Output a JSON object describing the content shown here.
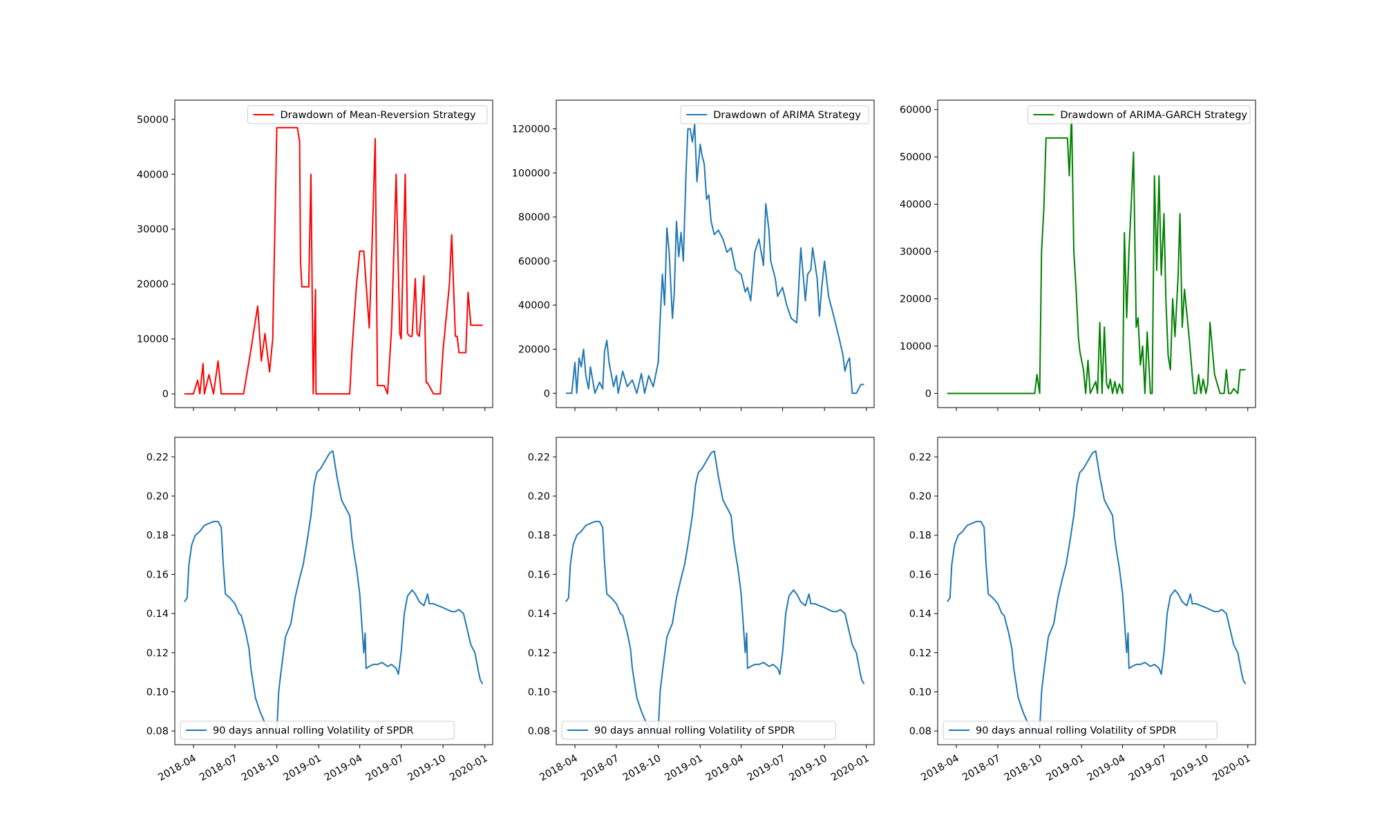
{
  "chart_data": [
    {
      "type": "line",
      "series": [
        {
          "name": "Drawdown of Mean-Reversion Strategy",
          "color": "#ff0000",
          "x": [
            "2018-03-12",
            "2018-04-01",
            "2018-04-10",
            "2018-04-15",
            "2018-04-22",
            "2018-04-25",
            "2018-05-05",
            "2018-05-15",
            "2018-05-25",
            "2018-06-01",
            "2018-06-15",
            "2018-07-01",
            "2018-07-20",
            "2018-08-05",
            "2018-08-20",
            "2018-08-28",
            "2018-09-05",
            "2018-09-15",
            "2018-09-22",
            "2018-10-01",
            "2018-10-05",
            "2018-10-20",
            "2018-11-05",
            "2018-11-15",
            "2018-11-20",
            "2018-11-22",
            "2018-11-25",
            "2018-12-01",
            "2018-12-10",
            "2018-12-15",
            "2018-12-20",
            "2018-12-25",
            "2018-12-26",
            "2019-01-15",
            "2019-02-15",
            "2019-03-01",
            "2019-03-10",
            "2019-03-15",
            "2019-03-20",
            "2019-03-25",
            "2019-04-01",
            "2019-04-10",
            "2019-04-15",
            "2019-04-22",
            "2019-04-28",
            "2019-05-05",
            "2019-05-10",
            "2019-05-15",
            "2019-05-20",
            "2019-05-25",
            "2019-06-01",
            "2019-06-10",
            "2019-06-20",
            "2019-06-28",
            "2019-07-01",
            "2019-07-10",
            "2019-07-15",
            "2019-07-20",
            "2019-07-25",
            "2019-08-01",
            "2019-08-05",
            "2019-08-10",
            "2019-08-20",
            "2019-08-25",
            "2019-08-28",
            "2019-09-10",
            "2019-09-15",
            "2019-09-20",
            "2019-09-25",
            "2019-10-01",
            "2019-10-15",
            "2019-10-20",
            "2019-10-28",
            "2019-11-01",
            "2019-11-05",
            "2019-11-10",
            "2019-11-15",
            "2019-11-20",
            "2019-11-25",
            "2019-12-01",
            "2019-12-10",
            "2019-12-18",
            "2019-12-20",
            "2019-12-27"
          ],
          "y": [
            0,
            0,
            2500,
            0,
            5500,
            0,
            3500,
            0,
            6000,
            0,
            0,
            0,
            0,
            8000,
            16000,
            6000,
            11000,
            4000,
            10000,
            48500,
            48500,
            48500,
            48500,
            48500,
            46000,
            24000,
            19500,
            19500,
            19500,
            40000,
            0,
            19000,
            0,
            0,
            0,
            0,
            0,
            8000,
            14000,
            20000,
            26000,
            26000,
            20000,
            12000,
            27000,
            46500,
            1500,
            1500,
            1500,
            1500,
            0,
            12000,
            40000,
            11000,
            10000,
            40000,
            11000,
            10500,
            10500,
            21000,
            11000,
            10500,
            21500,
            2000,
            2000,
            0,
            0,
            0,
            0,
            8000,
            20000,
            29000,
            10500,
            10500,
            7500,
            7500,
            7500,
            7500,
            18500,
            12500,
            12500,
            12500,
            12500,
            12500
          ]
        }
      ],
      "ylim": [
        -2500,
        53500
      ],
      "yticks": [
        0,
        10000,
        20000,
        30000,
        40000,
        50000
      ],
      "ytick_labels": [
        "0",
        "10000",
        "20000",
        "30000",
        "40000",
        "50000"
      ],
      "legend": "top-right",
      "xtick_labels": []
    },
    {
      "type": "line",
      "series": [
        {
          "name": "Drawdown of ARIMA Strategy",
          "color": "#1f77b4",
          "x": [
            "2018-03-12",
            "2018-03-25",
            "2018-04-01",
            "2018-04-05",
            "2018-04-10",
            "2018-04-15",
            "2018-04-20",
            "2018-04-25",
            "2018-05-01",
            "2018-05-05",
            "2018-05-15",
            "2018-05-25",
            "2018-06-01",
            "2018-06-05",
            "2018-06-10",
            "2018-06-15",
            "2018-06-25",
            "2018-07-01",
            "2018-07-05",
            "2018-07-15",
            "2018-07-25",
            "2018-08-05",
            "2018-08-15",
            "2018-08-25",
            "2018-09-01",
            "2018-09-10",
            "2018-09-20",
            "2018-10-01",
            "2018-10-05",
            "2018-10-10",
            "2018-10-15",
            "2018-10-20",
            "2018-10-25",
            "2018-11-01",
            "2018-11-05",
            "2018-11-10",
            "2018-11-15",
            "2018-11-20",
            "2018-11-25",
            "2018-12-01",
            "2018-12-05",
            "2018-12-10",
            "2018-12-15",
            "2018-12-20",
            "2018-12-25",
            "2019-01-01",
            "2019-01-05",
            "2019-01-10",
            "2019-01-15",
            "2019-01-20",
            "2019-01-25",
            "2019-02-01",
            "2019-02-10",
            "2019-02-20",
            "2019-03-01",
            "2019-03-10",
            "2019-03-20",
            "2019-04-01",
            "2019-04-10",
            "2019-04-15",
            "2019-04-22",
            "2019-05-01",
            "2019-05-10",
            "2019-05-20",
            "2019-05-25",
            "2019-06-01",
            "2019-06-05",
            "2019-06-15",
            "2019-06-20",
            "2019-07-01",
            "2019-07-10",
            "2019-07-20",
            "2019-08-01",
            "2019-08-05",
            "2019-08-10",
            "2019-08-20",
            "2019-08-25",
            "2019-09-01",
            "2019-09-05",
            "2019-09-15",
            "2019-09-20",
            "2019-09-25",
            "2019-10-01",
            "2019-10-10",
            "2019-10-15",
            "2019-10-20",
            "2019-11-01",
            "2019-11-10",
            "2019-11-15",
            "2019-11-20",
            "2019-11-25",
            "2019-12-01",
            "2019-12-10",
            "2019-12-20",
            "2019-12-27"
          ],
          "y": [
            0,
            0,
            14000,
            0,
            16000,
            12000,
            20000,
            8000,
            2000,
            12000,
            0,
            5000,
            2000,
            19000,
            24000,
            14000,
            3000,
            8000,
            0,
            10000,
            3000,
            6000,
            0,
            9000,
            0,
            8000,
            3000,
            14000,
            33000,
            54000,
            40000,
            75000,
            64000,
            34000,
            45000,
            78000,
            62000,
            73000,
            60000,
            100000,
            120000,
            120000,
            114000,
            122000,
            96000,
            113000,
            108000,
            104000,
            88000,
            90000,
            78000,
            72000,
            74000,
            70000,
            64000,
            66000,
            56000,
            54000,
            46000,
            48000,
            42000,
            64000,
            70000,
            58000,
            86000,
            74000,
            60000,
            52000,
            44000,
            48000,
            40000,
            34000,
            32000,
            46000,
            66000,
            42000,
            54000,
            56000,
            66000,
            52000,
            35000,
            48000,
            60000,
            44000,
            40000,
            36000,
            26000,
            18000,
            10000,
            14000,
            16000,
            0,
            0,
            4000,
            4000
          ],
          "note": ""
        }
      ],
      "ylim": [
        -6500,
        133000
      ],
      "yticks": [
        0,
        20000,
        40000,
        60000,
        80000,
        100000,
        120000
      ],
      "ytick_labels": [
        "0",
        "20000",
        "40000",
        "60000",
        "80000",
        "100000",
        "120000"
      ],
      "legend": "top-right",
      "xtick_labels": []
    },
    {
      "type": "line",
      "series": [
        {
          "name": "Drawdown of ARIMA-GARCH Strategy",
          "color": "#008000",
          "x": [
            "2018-03-12",
            "2018-09-20",
            "2018-09-25",
            "2018-10-01",
            "2018-10-05",
            "2018-10-10",
            "2018-10-15",
            "2018-10-20",
            "2018-11-05",
            "2018-11-15",
            "2018-11-25",
            "2018-12-01",
            "2018-12-05",
            "2018-12-10",
            "2018-12-15",
            "2018-12-20",
            "2018-12-25",
            "2018-12-28",
            "2019-01-05",
            "2019-01-10",
            "2019-01-15",
            "2019-01-20",
            "2019-02-01",
            "2019-02-05",
            "2019-02-10",
            "2019-02-15",
            "2019-02-20",
            "2019-02-25",
            "2019-03-01",
            "2019-03-05",
            "2019-03-10",
            "2019-03-15",
            "2019-03-20",
            "2019-03-25",
            "2019-04-01",
            "2019-04-05",
            "2019-04-10",
            "2019-04-15",
            "2019-04-20",
            "2019-04-25",
            "2019-05-01",
            "2019-05-05",
            "2019-05-10",
            "2019-05-15",
            "2019-05-20",
            "2019-05-25",
            "2019-06-01",
            "2019-06-05",
            "2019-06-10",
            "2019-06-15",
            "2019-06-20",
            "2019-06-25",
            "2019-07-01",
            "2019-07-05",
            "2019-07-10",
            "2019-07-15",
            "2019-07-20",
            "2019-07-25",
            "2019-08-01",
            "2019-08-05",
            "2019-08-10",
            "2019-08-15",
            "2019-08-20",
            "2019-08-25",
            "2019-09-01",
            "2019-09-05",
            "2019-09-10",
            "2019-09-15",
            "2019-09-20",
            "2019-09-25",
            "2019-10-01",
            "2019-10-05",
            "2019-10-10",
            "2019-10-20",
            "2019-11-01",
            "2019-11-10",
            "2019-11-15",
            "2019-11-20",
            "2019-11-25",
            "2019-12-01",
            "2019-12-10",
            "2019-12-15",
            "2019-12-20",
            "2019-12-27"
          ],
          "y": [
            0,
            0,
            4000,
            0,
            30000,
            39000,
            54000,
            54000,
            54000,
            54000,
            54000,
            54000,
            46000,
            59000,
            30000,
            22000,
            12000,
            9000,
            5000,
            0,
            7000,
            0,
            2500,
            0,
            15000,
            0,
            14000,
            2000,
            1000,
            3000,
            0,
            2500,
            0,
            2000,
            0,
            34000,
            16000,
            30000,
            40000,
            51000,
            14000,
            16000,
            6000,
            10000,
            0,
            13000,
            0,
            0,
            46000,
            26000,
            46000,
            25000,
            38000,
            20000,
            8000,
            5000,
            20000,
            12000,
            25000,
            38000,
            14000,
            22000,
            17000,
            12000,
            4000,
            0,
            0,
            4000,
            0,
            3000,
            0,
            2000,
            15000,
            4000,
            0,
            0,
            5000,
            0,
            0,
            1000,
            0,
            5000,
            5000,
            5000
          ]
        }
      ],
      "ylim": [
        -3000,
        62000
      ],
      "yticks": [
        0,
        10000,
        20000,
        30000,
        40000,
        50000,
        60000
      ],
      "ytick_labels": [
        "0",
        "10000",
        "20000",
        "30000",
        "40000",
        "50000",
        "60000"
      ],
      "legend": "top-right",
      "xtick_labels": []
    },
    {
      "type": "line",
      "series": [
        {
          "name": "90 days annual rolling Volatility of SPDR",
          "color": "#1f77b4"
        }
      ],
      "ylim": [
        0.073,
        0.23
      ],
      "yticks": [
        0.08,
        0.1,
        0.12,
        0.14,
        0.16,
        0.18,
        0.2,
        0.22
      ],
      "ytick_labels": [
        "0.08",
        "0.10",
        "0.12",
        "0.14",
        "0.16",
        "0.18",
        "0.20",
        "0.22"
      ],
      "legend": "bottom-left",
      "xtick_labels": [
        "2018-04",
        "2018-07",
        "2018-10",
        "2019-01",
        "2019-04",
        "2019-07",
        "2019-10",
        "2020-01"
      ]
    },
    {
      "type": "line",
      "series": [
        {
          "name": "90 days annual rolling Volatility of SPDR",
          "color": "#1f77b4"
        }
      ],
      "ylim": [
        0.073,
        0.23
      ],
      "yticks": [
        0.08,
        0.1,
        0.12,
        0.14,
        0.16,
        0.18,
        0.2,
        0.22
      ],
      "ytick_labels": [
        "0.08",
        "0.10",
        "0.12",
        "0.14",
        "0.16",
        "0.18",
        "0.20",
        "0.22"
      ],
      "legend": "bottom-left",
      "xtick_labels": [
        "2018-04",
        "2018-07",
        "2018-10",
        "2019-01",
        "2019-04",
        "2019-07",
        "2019-10",
        "2020-01"
      ]
    },
    {
      "type": "line",
      "series": [
        {
          "name": "90 days annual rolling Volatility of SPDR",
          "color": "#1f77b4"
        }
      ],
      "ylim": [
        0.073,
        0.23
      ],
      "yticks": [
        0.08,
        0.1,
        0.12,
        0.14,
        0.16,
        0.18,
        0.2,
        0.22
      ],
      "ytick_labels": [
        "0.08",
        "0.10",
        "0.12",
        "0.14",
        "0.16",
        "0.18",
        "0.20",
        "0.22"
      ],
      "legend": "bottom-left",
      "xtick_labels": [
        "2018-04",
        "2018-07",
        "2018-10",
        "2019-01",
        "2019-04",
        "2019-07",
        "2019-10",
        "2020-01"
      ]
    }
  ],
  "volatility_series": {
    "x": [
      "2018-03-12",
      "2018-03-18",
      "2018-03-22",
      "2018-03-28",
      "2018-04-05",
      "2018-04-15",
      "2018-04-25",
      "2018-05-05",
      "2018-05-15",
      "2018-05-25",
      "2018-06-01",
      "2018-06-05",
      "2018-06-10",
      "2018-06-20",
      "2018-07-01",
      "2018-07-10",
      "2018-07-15",
      "2018-07-25",
      "2018-08-01",
      "2018-08-05",
      "2018-08-15",
      "2018-08-25",
      "2018-09-05",
      "2018-09-15",
      "2018-09-25",
      "2018-09-28",
      "2018-10-01",
      "2018-10-05",
      "2018-10-10",
      "2018-10-20",
      "2018-11-01",
      "2018-11-10",
      "2018-11-20",
      "2018-11-28",
      "2018-12-05",
      "2018-12-15",
      "2018-12-22",
      "2018-12-28",
      "2019-01-05",
      "2019-01-15",
      "2019-01-25",
      "2019-02-01",
      "2019-02-10",
      "2019-02-20",
      "2019-03-01",
      "2019-03-10",
      "2019-03-15",
      "2019-03-20",
      "2019-03-25",
      "2019-04-01",
      "2019-04-10",
      "2019-04-13",
      "2019-04-15",
      "2019-04-22",
      "2019-05-01",
      "2019-05-10",
      "2019-05-20",
      "2019-06-01",
      "2019-06-10",
      "2019-06-20",
      "2019-06-25",
      "2019-07-01",
      "2019-07-08",
      "2019-07-15",
      "2019-07-25",
      "2019-08-01",
      "2019-08-10",
      "2019-08-20",
      "2019-08-28",
      "2019-09-01",
      "2019-09-10",
      "2019-09-20",
      "2019-10-01",
      "2019-10-10",
      "2019-10-20",
      "2019-10-28",
      "2019-11-05",
      "2019-11-15",
      "2019-11-25",
      "2019-12-01",
      "2019-12-10",
      "2019-12-18",
      "2019-12-22",
      "2019-12-27"
    ],
    "y": [
      0.146,
      0.148,
      0.165,
      0.175,
      0.18,
      0.182,
      0.185,
      0.186,
      0.187,
      0.187,
      0.184,
      0.166,
      0.15,
      0.148,
      0.145,
      0.14,
      0.139,
      0.13,
      0.122,
      0.112,
      0.097,
      0.09,
      0.084,
      0.081,
      0.079,
      0.078,
      0.08,
      0.1,
      0.11,
      0.128,
      0.135,
      0.148,
      0.158,
      0.165,
      0.175,
      0.19,
      0.206,
      0.212,
      0.214,
      0.218,
      0.222,
      0.223,
      0.21,
      0.198,
      0.194,
      0.19,
      0.178,
      0.17,
      0.163,
      0.15,
      0.12,
      0.13,
      0.112,
      0.113,
      0.114,
      0.114,
      0.115,
      0.113,
      0.114,
      0.112,
      0.109,
      0.12,
      0.14,
      0.149,
      0.152,
      0.15,
      0.146,
      0.144,
      0.15,
      0.145,
      0.145,
      0.144,
      0.143,
      0.142,
      0.141,
      0.141,
      0.142,
      0.14,
      0.13,
      0.124,
      0.12,
      0.11,
      0.106,
      0.104
    ]
  }
}
